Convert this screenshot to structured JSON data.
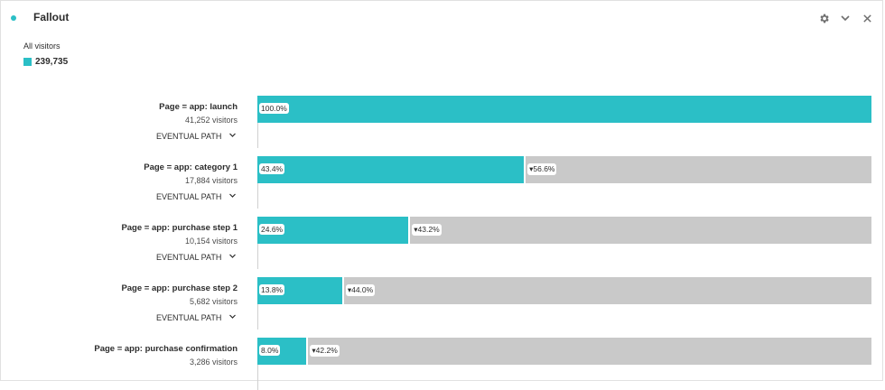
{
  "header": {
    "title": "Fallout"
  },
  "segment": {
    "label": "All visitors",
    "count": "239,735"
  },
  "colors": {
    "accent": "#2bbfc6",
    "rest": "#c9c9c9"
  },
  "steps": [
    {
      "name": "Page = app: launch",
      "visitors": "41,252 visitors",
      "pct_label": "100.0%",
      "pct": 100.0,
      "drop_label": "",
      "eventual": "EVENTUAL PATH"
    },
    {
      "name": "Page = app: category 1",
      "visitors": "17,884 visitors",
      "pct_label": "43.4%",
      "pct": 43.4,
      "drop_label": "▾56.6%",
      "eventual": "EVENTUAL PATH"
    },
    {
      "name": "Page = app: purchase step 1",
      "visitors": "10,154 visitors",
      "pct_label": "24.6%",
      "pct": 24.6,
      "drop_label": "▾43.2%",
      "eventual": "EVENTUAL PATH"
    },
    {
      "name": "Page = app: purchase step 2",
      "visitors": "5,682 visitors",
      "pct_label": "13.8%",
      "pct": 13.8,
      "drop_label": "▾44.0%",
      "eventual": "EVENTUAL PATH"
    },
    {
      "name": "Page = app: purchase confirmation",
      "visitors": "3,286 visitors",
      "pct_label": "8.0%",
      "pct": 8.0,
      "drop_label": "▾42.2%",
      "eventual": ""
    }
  ]
}
